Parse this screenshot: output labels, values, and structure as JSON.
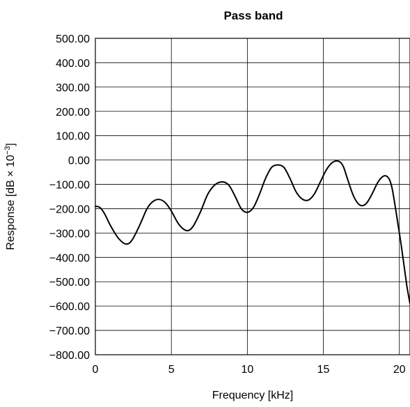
{
  "chart_data": {
    "type": "line",
    "title": "Pass band",
    "xlabel": "Frequency [kHz]",
    "ylabel": {
      "prefix": "Response [dB × 10",
      "superscript": "−3",
      "suffix": "]"
    },
    "xlim": [
      0,
      20.7
    ],
    "ylim": [
      -800,
      500
    ],
    "grid": true,
    "x_ticks": [
      0,
      5,
      10,
      15,
      20
    ],
    "x_tick_labels": [
      "0",
      "5",
      "10",
      "15",
      "20"
    ],
    "y_ticks": [
      500,
      400,
      300,
      200,
      100,
      0,
      -100,
      -200,
      -300,
      -400,
      -500,
      -600,
      -700,
      -800
    ],
    "y_tick_labels": [
      "500.00",
      "400.00",
      "300.00",
      "200.00",
      "100.00",
      "0.00",
      "−100.00",
      "−200.00",
      "−300.00",
      "−400.00",
      "−500.00",
      "−600.00",
      "−700.00",
      "−800.00"
    ],
    "series": [
      {
        "x": [
          0,
          0.3,
          0.6,
          1.0,
          1.5,
          2.0,
          2.4,
          2.9,
          3.4,
          3.8,
          4.2,
          4.6,
          5.0,
          5.5,
          6.0,
          6.4,
          6.9,
          7.4,
          7.9,
          8.4,
          8.8,
          9.2,
          9.6,
          10.0,
          10.4,
          10.8,
          11.2,
          11.6,
          12.0,
          12.4,
          12.8,
          13.2,
          13.6,
          14.0,
          14.4,
          14.8,
          15.2,
          15.6,
          16.0,
          16.3,
          16.6,
          17.0,
          17.4,
          17.8,
          18.2,
          18.6,
          19.0,
          19.3,
          19.5,
          19.7,
          19.9,
          20.1,
          20.3,
          20.5,
          20.7
        ],
        "y": [
          -190,
          -195,
          -220,
          -270,
          -320,
          -345,
          -330,
          -270,
          -200,
          -170,
          -162,
          -175,
          -210,
          -265,
          -290,
          -275,
          -215,
          -140,
          -100,
          -90,
          -105,
          -150,
          -200,
          -215,
          -195,
          -140,
          -75,
          -30,
          -20,
          -30,
          -75,
          -130,
          -160,
          -165,
          -140,
          -90,
          -40,
          -10,
          -5,
          -25,
          -80,
          -150,
          -185,
          -180,
          -140,
          -90,
          -65,
          -75,
          -110,
          -180,
          -260,
          -340,
          -430,
          -520,
          -590
        ]
      }
    ]
  }
}
